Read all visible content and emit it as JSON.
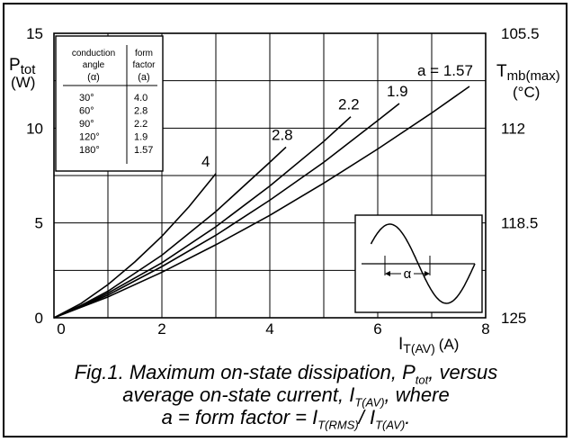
{
  "chart_data": {
    "type": "line",
    "title": "",
    "xlabel": "I",
    "xlabel_sub": "T(AV)",
    "xlabel_unit": "(A)",
    "ylabel": "P",
    "ylabel_sub": "tot",
    "ylabel_unit": "(W)",
    "xlim": [
      0,
      8
    ],
    "ylim": [
      0,
      15
    ],
    "x_ticks": [
      "0",
      "2",
      "4",
      "6",
      "8"
    ],
    "y_ticks": [
      "0",
      "5",
      "10",
      "15"
    ],
    "grid": true,
    "right_axis": {
      "label": "T",
      "label_sub": "mb(max)",
      "label_unit": "(°C)",
      "ticks": [
        "105.5",
        "112",
        "118.5",
        "125"
      ]
    },
    "series": [
      {
        "name": "4",
        "x": [
          0,
          0.5,
          1,
          1.5,
          2,
          2.5,
          3
        ],
        "y": [
          0,
          0.75,
          1.75,
          2.95,
          4.3,
          5.85,
          7.6
        ]
      },
      {
        "name": "2.8",
        "x": [
          0,
          0.5,
          1,
          2,
          3,
          4,
          4.3
        ],
        "y": [
          0,
          0.65,
          1.4,
          3.3,
          5.6,
          8.2,
          9.0
        ]
      },
      {
        "name": "2.2",
        "x": [
          0,
          0.5,
          1,
          2,
          3,
          4,
          5,
          5.5
        ],
        "y": [
          0,
          0.6,
          1.3,
          2.9,
          4.8,
          6.95,
          9.3,
          10.6
        ]
      },
      {
        "name": "1.9",
        "x": [
          0,
          0.5,
          1,
          2,
          3,
          4,
          5,
          6,
          6.4
        ],
        "y": [
          0,
          0.58,
          1.2,
          2.7,
          4.35,
          6.2,
          8.2,
          10.4,
          11.3
        ]
      },
      {
        "name": "a = 1.57",
        "x": [
          0,
          0.5,
          1,
          2,
          3,
          4,
          5,
          6,
          7,
          7.7
        ],
        "y": [
          0,
          0.55,
          1.1,
          2.4,
          3.85,
          5.4,
          7.1,
          8.9,
          10.8,
          12.2
        ]
      }
    ],
    "inset_table": {
      "headers": [
        [
          "conduction",
          "angle",
          "(α)"
        ],
        [
          "form",
          "factor",
          "(a)"
        ]
      ],
      "rows": [
        [
          "30°",
          "4.0"
        ],
        [
          "60°",
          "2.8"
        ],
        [
          "90°",
          "2.2"
        ],
        [
          "120°",
          "1.9"
        ],
        [
          "180°",
          "1.57"
        ]
      ]
    },
    "waveform_label": "α"
  },
  "caption": {
    "line1": "Fig.1.  Maximum on-state dissipation, P",
    "line1_sub": "tot",
    "line1_end": ", versus",
    "line2": "average on-state current, I",
    "line2_sub": "T(AV)",
    "line2_end": ", where",
    "line3": "a = form factor = I",
    "line3_sub1": "T(RMS)",
    "line3_mid": "/ I",
    "line3_sub2": "T(AV)",
    "line3_end": "."
  }
}
